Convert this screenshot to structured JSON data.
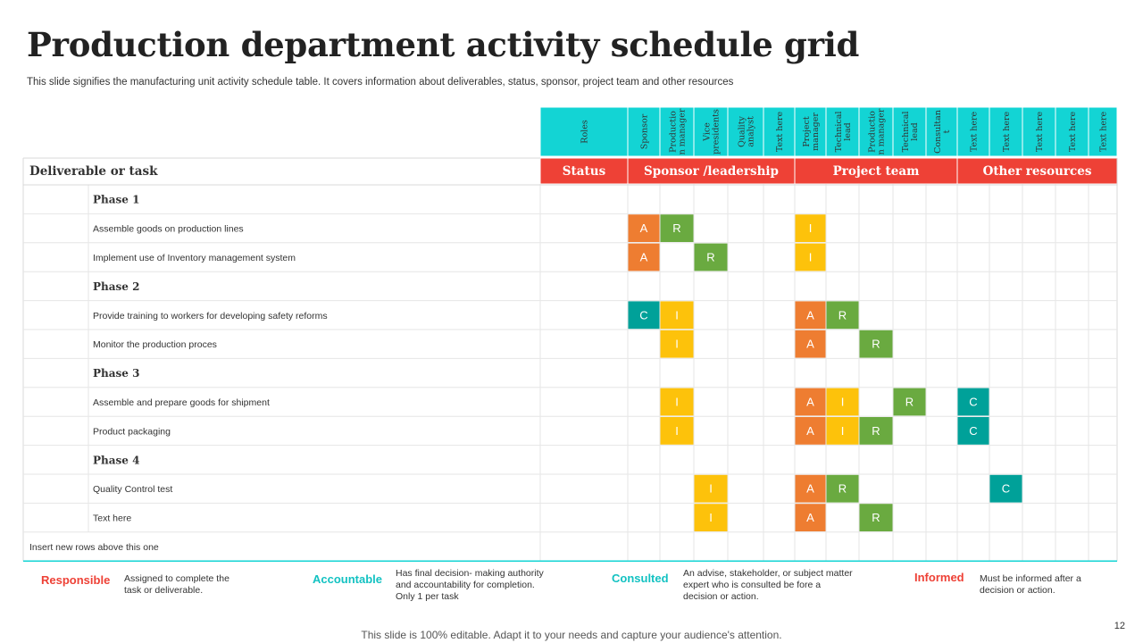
{
  "slide": {
    "title": "Production department activity schedule grid",
    "subtitle": "This slide signifies the manufacturing unit activity schedule table. It covers information about deliverables, status, sponsor, project team and other resources",
    "footer": "This slide is 100% editable. Adapt it to your needs and capture your audience's attention.",
    "page_number": "12"
  },
  "colors": {
    "teal_header": "#13d4d4",
    "red_header": "#ee4136",
    "A": "#ee7d31",
    "R": "#6aaa40",
    "I": "#fdc20b",
    "C": "#00a199"
  },
  "grid": {
    "roles": [
      "Roles",
      "Sponsor",
      "Productio n manager",
      "Vice presidents",
      "Quality analyst",
      "Text here",
      "Project manager",
      "Technical lead",
      "Productio n manager",
      "Technical lead",
      "Consultan t",
      "Text here",
      "Text here",
      "Text here",
      "Text here",
      "Text here"
    ],
    "deliverable_header": "Deliverable or task",
    "groups": [
      "Status",
      "Sponsor /leadership",
      "Project team",
      "Other resources"
    ],
    "rows": [
      {
        "type": "phase",
        "label": "Phase 1"
      },
      {
        "type": "task",
        "label": "Assemble goods on production lines",
        "marks": [
          {
            "col": 1,
            "v": "A"
          },
          {
            "col": 2,
            "v": "R"
          },
          {
            "col": 6,
            "v": "I"
          }
        ]
      },
      {
        "type": "task",
        "label": "Implement  use of Inventory management  system",
        "marks": [
          {
            "col": 1,
            "v": "A"
          },
          {
            "col": 3,
            "v": "R"
          },
          {
            "col": 6,
            "v": "I"
          }
        ]
      },
      {
        "type": "phase",
        "label": "Phase 2"
      },
      {
        "type": "task",
        "label": "Provide training to workers for developing safety reforms",
        "marks": [
          {
            "col": 1,
            "v": "C"
          },
          {
            "col": 2,
            "v": "I"
          },
          {
            "col": 6,
            "v": "A"
          },
          {
            "col": 7,
            "v": "R"
          }
        ]
      },
      {
        "type": "task",
        "label": "Monitor  the production proces",
        "marks": [
          {
            "col": 2,
            "v": "I"
          },
          {
            "col": 6,
            "v": "A"
          },
          {
            "col": 8,
            "v": "R"
          }
        ]
      },
      {
        "type": "phase",
        "label": "Phase 3"
      },
      {
        "type": "task",
        "label": "Assemble and prepare goods for shipment",
        "marks": [
          {
            "col": 2,
            "v": "I"
          },
          {
            "col": 6,
            "v": "A"
          },
          {
            "col": 7,
            "v": "I"
          },
          {
            "col": 9,
            "v": "R"
          },
          {
            "col": 11,
            "v": "C"
          }
        ]
      },
      {
        "type": "task",
        "label": "Product packaging",
        "marks": [
          {
            "col": 2,
            "v": "I"
          },
          {
            "col": 6,
            "v": "A"
          },
          {
            "col": 7,
            "v": "I"
          },
          {
            "col": 8,
            "v": "R"
          },
          {
            "col": 11,
            "v": "C"
          }
        ]
      },
      {
        "type": "phase",
        "label": "Phase 4"
      },
      {
        "type": "task",
        "label": "Quality Control test",
        "marks": [
          {
            "col": 3,
            "v": "I"
          },
          {
            "col": 6,
            "v": "A"
          },
          {
            "col": 7,
            "v": "R"
          },
          {
            "col": 12,
            "v": "C"
          }
        ]
      },
      {
        "type": "task",
        "label": "Text here",
        "marks": [
          {
            "col": 3,
            "v": "I"
          },
          {
            "col": 6,
            "v": "A"
          },
          {
            "col": 8,
            "v": "R"
          }
        ]
      }
    ],
    "insert_label": "Insert new rows above this one"
  },
  "legend": [
    {
      "term": "Responsible",
      "color": "#ee4136",
      "desc": [
        "Assigned to complete the",
        "task or deliverable."
      ]
    },
    {
      "term": "Accountable",
      "color": "#13c2c2",
      "desc": [
        "Has final decision- making authority",
        "and accountability for completion.",
        "Only 1 per task"
      ]
    },
    {
      "term": "Consulted",
      "color": "#13c2c2",
      "desc": [
        "An advise, stakeholder, or subject matter",
        "expert who is consulted be fore a",
        "decision or action."
      ]
    },
    {
      "term": "Informed",
      "color": "#ee4136",
      "desc": [
        "Must be informed after a",
        "decision or action."
      ]
    }
  ]
}
